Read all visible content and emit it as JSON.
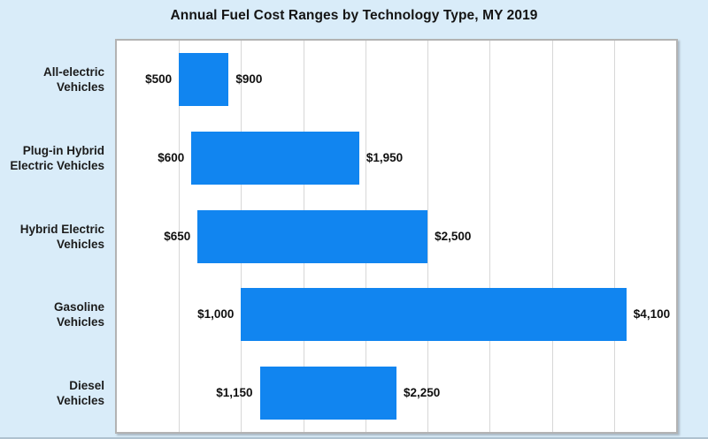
{
  "chart_data": {
    "type": "bar",
    "orientation": "horizontal",
    "subtype": "floating-range-bars",
    "title": "Annual Fuel Cost Ranges by Technology Type, MY 2019",
    "xlabel": "",
    "ylabel": "",
    "xlim": [
      0,
      4500
    ],
    "gridline_step": 500,
    "grid": true,
    "legend": false,
    "categories": [
      "All-electric Vehicles",
      "Plug-in Hybrid Electric Vehicles",
      "Hybrid Electric Vehicles",
      "Gasoline Vehicles",
      "Diesel Vehicles"
    ],
    "rows": [
      {
        "label_lines": [
          "All-electric",
          "Vehicles"
        ],
        "min": 500,
        "max": 900,
        "min_label": "$500",
        "max_label": "$900"
      },
      {
        "label_lines": [
          "Plug-in Hybrid",
          "Electric Vehicles"
        ],
        "min": 600,
        "max": 1950,
        "min_label": "$600",
        "max_label": "$1,950"
      },
      {
        "label_lines": [
          "Hybrid Electric",
          "Vehicles"
        ],
        "min": 650,
        "max": 2500,
        "min_label": "$650",
        "max_label": "$2,500"
      },
      {
        "label_lines": [
          "Gasoline",
          "Vehicles"
        ],
        "min": 1000,
        "max": 4100,
        "min_label": "$1,000",
        "max_label": "$4,100"
      },
      {
        "label_lines": [
          "Diesel",
          "Vehicles"
        ],
        "min": 1150,
        "max": 2250,
        "min_label": "$1,150",
        "max_label": "$2,250"
      }
    ]
  },
  "colors": {
    "background": "#d9ecf9",
    "bar": "#1185f0",
    "grid": "#d7d7d7",
    "plot_border": "#b3b3b3",
    "text": "#141414"
  }
}
